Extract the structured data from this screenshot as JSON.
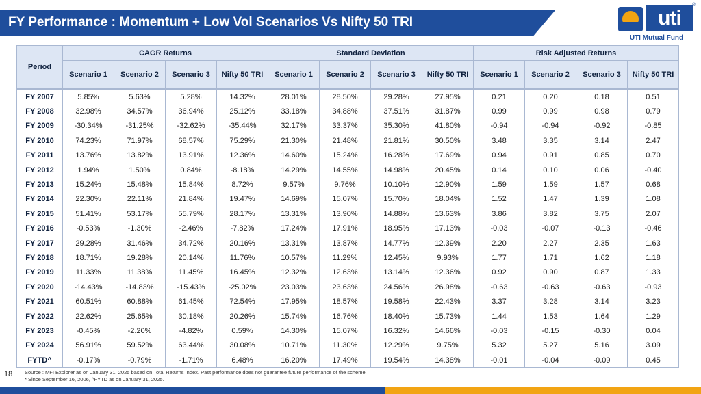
{
  "title": "FY Performance : Momentum + Low Vol Scenarios Vs Nifty 50 TRI",
  "logo": {
    "name": "uti",
    "registered": "®",
    "subtitle": "UTI Mutual Fund"
  },
  "table": {
    "period_header": "Period",
    "groups": [
      "CAGR Returns",
      "Standard Deviation",
      "Risk Adjusted Returns"
    ],
    "subheaders": [
      "Scenario 1",
      "Scenario 2",
      "Scenario 3",
      "Nifty 50 TRI"
    ],
    "rows": [
      {
        "period": "FY 2007",
        "values": [
          "5.85%",
          "5.63%",
          "5.28%",
          "14.32%",
          "28.01%",
          "28.50%",
          "29.28%",
          "27.95%",
          "0.21",
          "0.20",
          "0.18",
          "0.51"
        ]
      },
      {
        "period": "FY 2008",
        "values": [
          "32.98%",
          "34.57%",
          "36.94%",
          "25.12%",
          "33.18%",
          "34.88%",
          "37.51%",
          "31.87%",
          "0.99",
          "0.99",
          "0.98",
          "0.79"
        ]
      },
      {
        "period": "FY 2009",
        "values": [
          "-30.34%",
          "-31.25%",
          "-32.62%",
          "-35.44%",
          "32.17%",
          "33.37%",
          "35.30%",
          "41.80%",
          "-0.94",
          "-0.94",
          "-0.92",
          "-0.85"
        ]
      },
      {
        "period": "FY 2010",
        "values": [
          "74.23%",
          "71.97%",
          "68.57%",
          "75.29%",
          "21.30%",
          "21.48%",
          "21.81%",
          "30.50%",
          "3.48",
          "3.35",
          "3.14",
          "2.47"
        ]
      },
      {
        "period": "FY 2011",
        "values": [
          "13.76%",
          "13.82%",
          "13.91%",
          "12.36%",
          "14.60%",
          "15.24%",
          "16.28%",
          "17.69%",
          "0.94",
          "0.91",
          "0.85",
          "0.70"
        ]
      },
      {
        "period": "FY 2012",
        "values": [
          "1.94%",
          "1.50%",
          "0.84%",
          "-8.18%",
          "14.29%",
          "14.55%",
          "14.98%",
          "20.45%",
          "0.14",
          "0.10",
          "0.06",
          "-0.40"
        ]
      },
      {
        "period": "FY 2013",
        "values": [
          "15.24%",
          "15.48%",
          "15.84%",
          "8.72%",
          "9.57%",
          "9.76%",
          "10.10%",
          "12.90%",
          "1.59",
          "1.59",
          "1.57",
          "0.68"
        ]
      },
      {
        "period": "FY 2014",
        "values": [
          "22.30%",
          "22.11%",
          "21.84%",
          "19.47%",
          "14.69%",
          "15.07%",
          "15.70%",
          "18.04%",
          "1.52",
          "1.47",
          "1.39",
          "1.08"
        ]
      },
      {
        "period": "FY 2015",
        "values": [
          "51.41%",
          "53.17%",
          "55.79%",
          "28.17%",
          "13.31%",
          "13.90%",
          "14.88%",
          "13.63%",
          "3.86",
          "3.82",
          "3.75",
          "2.07"
        ]
      },
      {
        "period": "FY 2016",
        "values": [
          "-0.53%",
          "-1.30%",
          "-2.46%",
          "-7.82%",
          "17.24%",
          "17.91%",
          "18.95%",
          "17.13%",
          "-0.03",
          "-0.07",
          "-0.13",
          "-0.46"
        ]
      },
      {
        "period": "FY 2017",
        "values": [
          "29.28%",
          "31.46%",
          "34.72%",
          "20.16%",
          "13.31%",
          "13.87%",
          "14.77%",
          "12.39%",
          "2.20",
          "2.27",
          "2.35",
          "1.63"
        ]
      },
      {
        "period": "FY 2018",
        "values": [
          "18.71%",
          "19.28%",
          "20.14%",
          "11.76%",
          "10.57%",
          "11.29%",
          "12.45%",
          "9.93%",
          "1.77",
          "1.71",
          "1.62",
          "1.18"
        ]
      },
      {
        "period": "FY 2019",
        "values": [
          "11.33%",
          "11.38%",
          "11.45%",
          "16.45%",
          "12.32%",
          "12.63%",
          "13.14%",
          "12.36%",
          "0.92",
          "0.90",
          "0.87",
          "1.33"
        ]
      },
      {
        "period": "FY 2020",
        "values": [
          "-14.43%",
          "-14.83%",
          "-15.43%",
          "-25.02%",
          "23.03%",
          "23.63%",
          "24.56%",
          "26.98%",
          "-0.63",
          "-0.63",
          "-0.63",
          "-0.93"
        ]
      },
      {
        "period": "FY 2021",
        "values": [
          "60.51%",
          "60.88%",
          "61.45%",
          "72.54%",
          "17.95%",
          "18.57%",
          "19.58%",
          "22.43%",
          "3.37",
          "3.28",
          "3.14",
          "3.23"
        ]
      },
      {
        "period": "FY 2022",
        "values": [
          "22.62%",
          "25.65%",
          "30.18%",
          "20.26%",
          "15.74%",
          "16.76%",
          "18.40%",
          "15.73%",
          "1.44",
          "1.53",
          "1.64",
          "1.29"
        ]
      },
      {
        "period": "FY 2023",
        "values": [
          "-0.45%",
          "-2.20%",
          "-4.82%",
          "0.59%",
          "14.30%",
          "15.07%",
          "16.32%",
          "14.66%",
          "-0.03",
          "-0.15",
          "-0.30",
          "0.04"
        ]
      },
      {
        "period": "FY 2024",
        "values": [
          "56.91%",
          "59.52%",
          "63.44%",
          "30.08%",
          "10.71%",
          "11.30%",
          "12.29%",
          "9.75%",
          "5.32",
          "5.27",
          "5.16",
          "3.09"
        ]
      },
      {
        "period": "FYTD^",
        "values": [
          "-0.17%",
          "-0.79%",
          "-1.71%",
          "6.48%",
          "16.20%",
          "17.49%",
          "19.54%",
          "14.38%",
          "-0.01",
          "-0.04",
          "-0.09",
          "0.45"
        ]
      }
    ]
  },
  "footer": {
    "page_number": "18",
    "source_line1": "Source : MFI Explorer as on January 31, 2025 based on Total Returns Index. Past performance does not guarantee future performance of the scheme.",
    "source_line2": "* Since September 16, 2006, ^FYTD as on January 31, 2025."
  },
  "colors": {
    "primary": "#1f4e9c",
    "accent": "#f2a413",
    "header_bg": "#dde6f4"
  }
}
